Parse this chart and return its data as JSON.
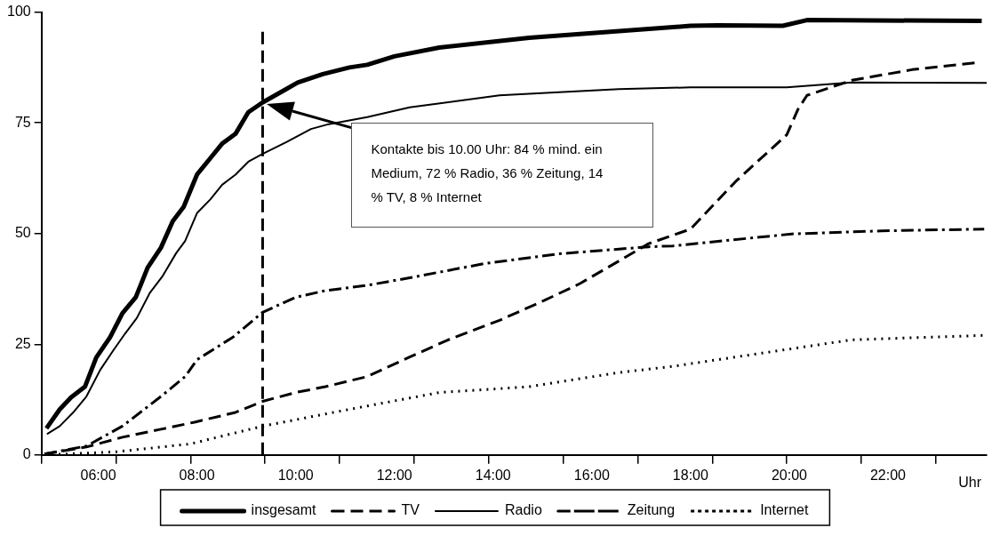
{
  "chart_data": {
    "type": "line",
    "xlabel": "Uhr",
    "xlim": [
      4.85,
      24
    ],
    "ylim": [
      0,
      100
    ],
    "xticks": [
      {
        "value": 4.85,
        "label": null
      },
      {
        "value": 6,
        "label": "06:00"
      },
      {
        "value": 6.36,
        "label": null
      },
      {
        "value": 7.87,
        "label": null
      },
      {
        "value": 8,
        "label": "08:00"
      },
      {
        "value": 9.38,
        "label": null
      },
      {
        "value": 10,
        "label": "10:00"
      },
      {
        "value": 10.89,
        "label": null
      },
      {
        "value": 12,
        "label": "12:00"
      },
      {
        "value": 12.4,
        "label": null
      },
      {
        "value": 13.91,
        "label": null
      },
      {
        "value": 14,
        "label": "14:00"
      },
      {
        "value": 15.42,
        "label": null
      },
      {
        "value": 16,
        "label": "16:00"
      },
      {
        "value": 16.93,
        "label": null
      },
      {
        "value": 18,
        "label": "18:00"
      },
      {
        "value": 18.44,
        "label": null
      },
      {
        "value": 19.95,
        "label": null
      },
      {
        "value": 20,
        "label": "20:00"
      },
      {
        "value": 21.46,
        "label": null
      },
      {
        "value": 22,
        "label": "22:00"
      },
      {
        "value": 22.97,
        "label": null
      }
    ],
    "yticks": [
      0,
      25,
      50,
      75,
      100
    ],
    "grid": false,
    "legend": "bottom",
    "marker": "none",
    "series": [
      {
        "name": "insgesamt",
        "color": "#000000",
        "line_style": "solid",
        "x": [
          4.95,
          5.22,
          5.45,
          5.73,
          5.96,
          6.24,
          6.49,
          6.76,
          7,
          7.27,
          7.51,
          7.73,
          8,
          8.27,
          8.51,
          8.78,
          9.04,
          9.33,
          9.76,
          10.04,
          10.55,
          11.09,
          11.45,
          12,
          12.91,
          14.73,
          16.55,
          18,
          18.55,
          19.87,
          20.36,
          23.9
        ],
        "values": [
          6,
          10.3,
          13,
          15.4,
          22,
          26.6,
          32,
          35.6,
          42.3,
          46.8,
          52.8,
          56,
          63.3,
          67,
          70.3,
          72.5,
          77.4,
          79.6,
          82.3,
          84.1,
          86,
          87.5,
          88.1,
          90,
          92,
          94.2,
          95.7,
          96.9,
          97,
          96.9,
          98.2,
          98
        ]
      },
      {
        "name": "TV",
        "color": "#000000",
        "line_style": "dashed",
        "x": [
          4.91,
          5.76,
          6.49,
          7.27,
          7.95,
          8.78,
          9.33,
          10,
          10.6,
          11.45,
          12.31,
          13.09,
          14.13,
          15.04,
          15.76,
          16.55,
          17.15,
          18,
          18.91,
          19.95,
          20.18,
          20.36,
          21.27,
          22.49,
          23.82
        ],
        "values": [
          0.2,
          1.8,
          4,
          5.8,
          7.4,
          9.6,
          12.1,
          14.1,
          15.4,
          17.7,
          22.1,
          26,
          30.4,
          34.9,
          38.7,
          43.8,
          47.7,
          51,
          61.7,
          72.3,
          78.1,
          81.2,
          84.6,
          87,
          88.6
        ]
      },
      {
        "name": "Radio",
        "color": "#000000",
        "line_style": "solid",
        "x": [
          4.96,
          5.22,
          5.51,
          5.76,
          6.04,
          6.31,
          6.55,
          6.78,
          7.04,
          7.31,
          7.58,
          7.76,
          8,
          8.27,
          8.51,
          8.78,
          9.04,
          9.33,
          9.82,
          10.31,
          10.67,
          11.45,
          12.31,
          14.13,
          15.33,
          16.55,
          18,
          19.95,
          21.27,
          24
        ],
        "values": [
          4.7,
          6.5,
          9.8,
          13.2,
          19.2,
          23.7,
          27.5,
          30.9,
          36.5,
          40.5,
          45.6,
          48.3,
          54.6,
          57.7,
          61,
          63.3,
          66.2,
          68,
          70.7,
          73.6,
          74.7,
          76.3,
          78.5,
          81.2,
          81.9,
          82.6,
          83,
          83,
          84.1,
          84
        ]
      },
      {
        "name": "Zeitung",
        "color": "#000000",
        "line_style": "dashed",
        "x": [
          4.91,
          5.76,
          6.49,
          7.27,
          7.76,
          8,
          8.73,
          9.33,
          10,
          10.6,
          11.45,
          12.31,
          13.82,
          15.33,
          17.15,
          17.64,
          20.05,
          21.87,
          23.95
        ],
        "values": [
          0.2,
          2,
          6.5,
          13.2,
          17.7,
          21.5,
          26.6,
          32.2,
          35.6,
          37.1,
          38.3,
          40,
          43.2,
          45.4,
          47,
          47.2,
          49.9,
          50.6,
          51
        ]
      },
      {
        "name": "Internet",
        "color": "#000000",
        "line_style": "dotted",
        "x": [
          4.91,
          6.36,
          7.87,
          9.33,
          11.09,
          12.91,
          14.73,
          16.55,
          17.64,
          19.45,
          21.27,
          23.95
        ],
        "values": [
          0,
          0.7,
          2.5,
          6.5,
          10.3,
          14.1,
          15.4,
          18.6,
          20,
          23,
          26,
          27
        ]
      }
    ],
    "ref_lines": [
      {
        "axis": "x",
        "value": 9.33,
        "color": "#000000",
        "line_style": "dashed"
      }
    ],
    "annotations": [
      "Kontakte bis 10.00 Uhr: 84 % mind. ein Medium, 72 % Radio, 36 % Zeitung, 14 % TV, 8 % Internet"
    ]
  }
}
